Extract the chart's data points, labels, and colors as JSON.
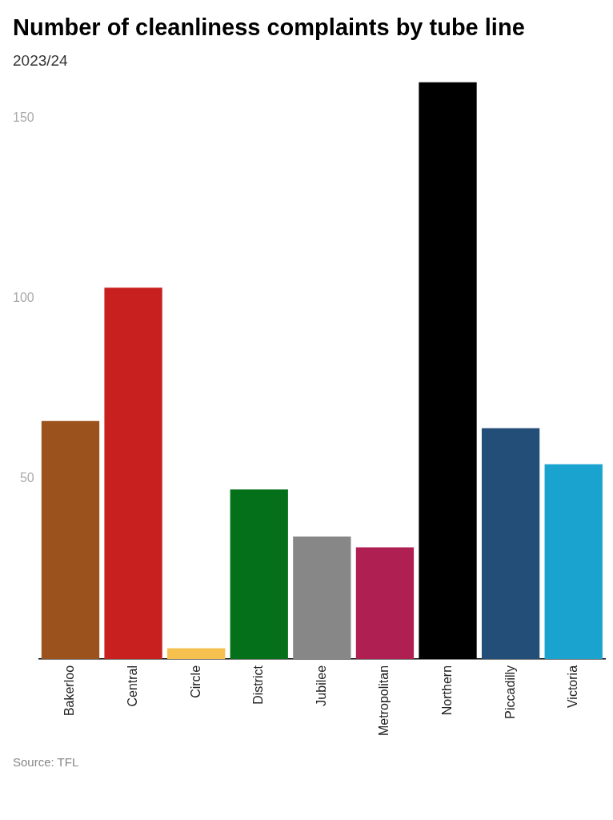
{
  "chart_data": {
    "type": "bar",
    "title": "Number of cleanliness complaints by tube line",
    "subtitle": "2023/24",
    "categories": [
      "Bakerloo",
      "Central",
      "Circle",
      "District",
      "Jubilee",
      "Metropolitan",
      "Northern",
      "Piccadilly",
      "Victoria"
    ],
    "values": [
      66,
      103,
      3,
      47,
      34,
      31,
      160,
      64,
      54
    ],
    "colors": [
      "#9b521c",
      "#c8201e",
      "#f6c04f",
      "#04701a",
      "#878787",
      "#b01f52",
      "#000000",
      "#234e77",
      "#1aa3cf"
    ],
    "ylim": [
      0,
      160
    ],
    "yticks": [
      50,
      100,
      150
    ],
    "grid": false,
    "legend": false,
    "annotations": [
      "Source: TFL"
    ]
  }
}
